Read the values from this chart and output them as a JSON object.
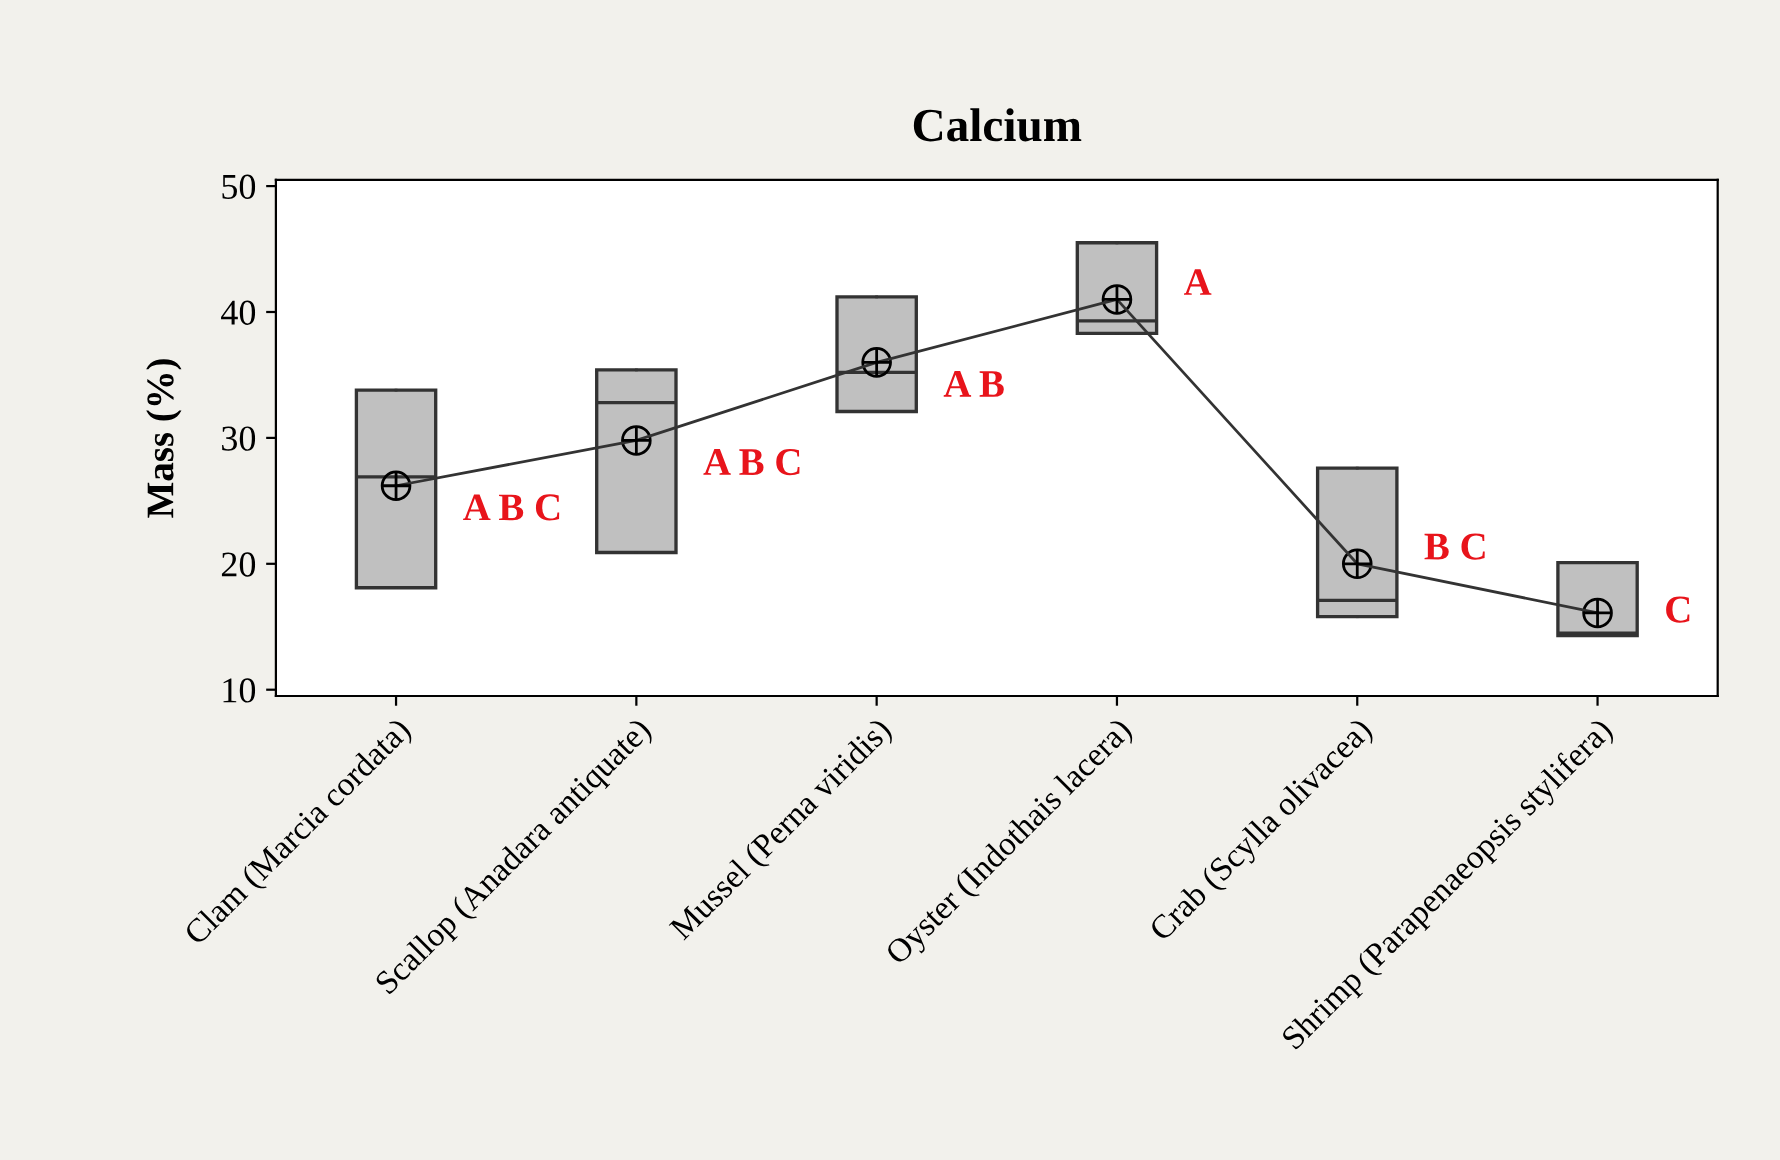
{
  "chart_data": {
    "type": "box",
    "title": "Calcium",
    "ylabel": "Mass (%)",
    "categories": [
      "Clam (Marcia cordata)",
      "Scallop (Anadara antiquate)",
      "Mussel (Perna viridis)",
      "Oyster (Indothais lacera)",
      "Crab (Scylla olivacea)",
      "Shrimp (Parapenaeopsis stylifera)"
    ],
    "boxes": [
      {
        "low": 18.1,
        "q1": 18.1,
        "median": 26.9,
        "q3": 33.8,
        "high": 33.8,
        "mean": 26.2
      },
      {
        "low": 20.9,
        "q1": 20.9,
        "median": 32.8,
        "q3": 35.4,
        "high": 35.4,
        "mean": 29.8
      },
      {
        "low": 32.1,
        "q1": 32.1,
        "median": 35.2,
        "q3": 41.2,
        "high": 41.2,
        "mean": 36.0
      },
      {
        "low": 38.3,
        "q1": 38.3,
        "median": 39.3,
        "q3": 45.5,
        "high": 45.5,
        "mean": 41.0
      },
      {
        "low": 15.8,
        "q1": 15.8,
        "median": 17.1,
        "q3": 27.6,
        "high": 27.6,
        "mean": 20.0
      },
      {
        "low": 14.3,
        "q1": 14.3,
        "median": 14.5,
        "q3": 20.1,
        "high": 20.1,
        "mean": 16.1
      }
    ],
    "color": "#c0c0c0",
    "ylim": [
      9.5,
      50.5
    ],
    "yticks": [
      10,
      20,
      30,
      40,
      50
    ],
    "series": [
      {
        "type": "line",
        "color": "#333333",
        "values": [
          26.2,
          29.8,
          36.0,
          41.0,
          20.0,
          16.1
        ]
      }
    ],
    "annotations": [
      "A B C",
      "A B C",
      "A B",
      "A",
      "B C",
      "C"
    ],
    "grid": false,
    "legend": false
  }
}
